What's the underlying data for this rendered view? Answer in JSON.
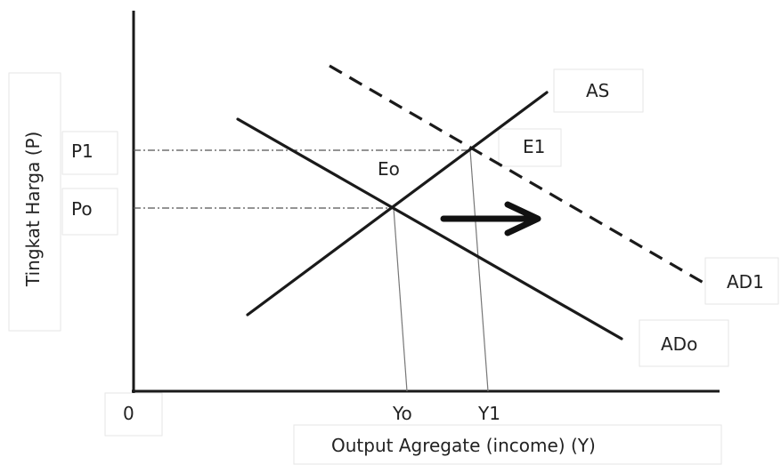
{
  "axes": {
    "y_label": "Tingkat Harga  (P)",
    "x_label": "Output Agregate (income) (Y)",
    "origin_label": "0"
  },
  "price_levels": {
    "p1": "P1",
    "p0": "Po"
  },
  "output_levels": {
    "y0": "Yo",
    "y1": "Y1"
  },
  "curves": {
    "as": "AS",
    "ad0": "ADo",
    "ad1": "AD1"
  },
  "equilibria": {
    "e0": "Eo",
    "e1": "E1"
  },
  "shift_arrow": {
    "direction": "right",
    "meaning": "AD shifts from ADo to AD1"
  },
  "colors": {
    "line": "#1a1a1a",
    "guide": "#555555",
    "background": "#ffffff"
  }
}
